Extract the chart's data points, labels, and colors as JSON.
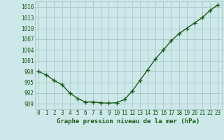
{
  "x": [
    0,
    1,
    2,
    3,
    4,
    5,
    6,
    7,
    8,
    9,
    10,
    11,
    12,
    13,
    14,
    15,
    16,
    17,
    18,
    19,
    20,
    21,
    22,
    23
  ],
  "y": [
    998.0,
    997.0,
    995.5,
    994.3,
    992.0,
    990.5,
    989.5,
    989.5,
    989.3,
    989.2,
    989.3,
    990.2,
    992.5,
    995.5,
    998.5,
    1001.5,
    1004.0,
    1006.5,
    1008.5,
    1010.0,
    1011.5,
    1013.0,
    1015.0,
    1016.5
  ],
  "line_color": "#1a5c1a",
  "marker": "+",
  "bg_color": "#cce8e8",
  "grid_color": "#aac8c8",
  "xlabel": "Graphe pression niveau de la mer (hPa)",
  "xlabel_fontsize": 6.5,
  "yticks": [
    989,
    992,
    995,
    998,
    1001,
    1004,
    1007,
    1010,
    1013,
    1016
  ],
  "xticks": [
    0,
    1,
    2,
    3,
    4,
    5,
    6,
    7,
    8,
    9,
    10,
    11,
    12,
    13,
    14,
    15,
    16,
    17,
    18,
    19,
    20,
    21,
    22,
    23
  ],
  "ylim": [
    987.5,
    1017.5
  ],
  "xlim": [
    -0.5,
    23.5
  ],
  "tick_color": "#1a5c1a",
  "tick_fontsize": 5.5,
  "line_width": 1.0,
  "marker_size": 4,
  "marker_edge_width": 1.0
}
